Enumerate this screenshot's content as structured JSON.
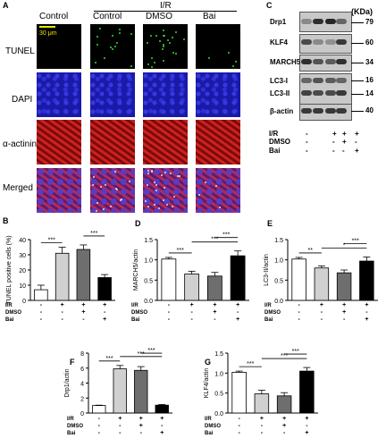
{
  "panel_a": {
    "label": "A",
    "group_header": "I/R",
    "columns": [
      "Control",
      "Control",
      "DMSO",
      "Bai"
    ],
    "rows": [
      "TUNEL",
      "DAPI",
      "α-actinin",
      "Merged"
    ],
    "scale_bar": "30 μm",
    "colors": {
      "tunel": "#000000",
      "dapi": "#1a1aa8",
      "actinin": "#b31515"
    }
  },
  "panel_c": {
    "label": "C",
    "unit": "(KDa)",
    "bands": [
      {
        "name": "Drp1",
        "kda": "79"
      },
      {
        "name": "KLF4",
        "kda": "60"
      },
      {
        "name": "MARCH5",
        "kda": "34"
      },
      {
        "name": "LC3-I",
        "kda": "16"
      },
      {
        "name": "LC3-II",
        "kda": "14"
      },
      {
        "name": "β-actin",
        "kda": "40"
      }
    ],
    "conditions": {
      "rows": [
        "I/R",
        "DMSO",
        "Bai"
      ],
      "values": [
        [
          "-",
          "+",
          "+",
          "+"
        ],
        [
          "-",
          "-",
          "+",
          "-"
        ],
        [
          "-",
          "-",
          "-",
          "+"
        ]
      ]
    }
  },
  "conditions": {
    "rows": [
      "I/R",
      "DMSO",
      "Bai"
    ],
    "values": [
      [
        "-",
        "+",
        "+",
        "+"
      ],
      [
        "-",
        "-",
        "+",
        "-"
      ],
      [
        "-",
        "-",
        "-",
        "+"
      ]
    ]
  },
  "bar_colors": [
    "#ffffff",
    "#d0d0d0",
    "#6e6e6e",
    "#000000"
  ],
  "chart_data": [
    {
      "label": "B",
      "type": "bar",
      "ylabel": "TUNEL positive cells (%)",
      "ylim": [
        0,
        40
      ],
      "ticks": [
        "0",
        "10",
        "20",
        "30",
        "40"
      ],
      "values": [
        7,
        31,
        33.5,
        15
      ],
      "errors": [
        3,
        4,
        3,
        2
      ],
      "sig": [
        {
          "text": "***",
          "from": 0,
          "to": 1
        },
        {
          "text": "***",
          "from": 2,
          "to": 3
        }
      ]
    },
    {
      "label": "D",
      "type": "bar",
      "ylabel": "MARCH5/actin",
      "ylim": [
        0,
        1.5
      ],
      "ticks": [
        "0.0",
        "0.5",
        "1.0",
        "1.5"
      ],
      "values": [
        1.02,
        0.65,
        0.6,
        1.1
      ],
      "errors": [
        0.04,
        0.07,
        0.09,
        0.12
      ],
      "sig": [
        {
          "text": "***",
          "from": 0,
          "to": 1
        },
        {
          "text": "***",
          "from": 1,
          "to": 3
        },
        {
          "text": "***",
          "from": 2,
          "to": 3
        }
      ]
    },
    {
      "label": "E",
      "type": "bar",
      "ylabel": "LC3-II/actin",
      "ylim": [
        0,
        1.5
      ],
      "ticks": [
        "0.0",
        "0.5",
        "1.0",
        "1.5"
      ],
      "values": [
        1.02,
        0.8,
        0.68,
        0.97
      ],
      "errors": [
        0.04,
        0.05,
        0.07,
        0.1
      ],
      "sig": [
        {
          "text": "**",
          "from": 0,
          "to": 1
        },
        {
          "text": "*",
          "from": 1,
          "to": 3
        },
        {
          "text": "***",
          "from": 2,
          "to": 3
        }
      ]
    },
    {
      "label": "F",
      "type": "bar",
      "ylabel": "Drp1/actin",
      "ylim": [
        0,
        8
      ],
      "ticks": [
        "0",
        "2",
        "4",
        "6",
        "8"
      ],
      "values": [
        1.0,
        5.9,
        5.7,
        1.05
      ],
      "errors": [
        0.05,
        0.45,
        0.5,
        0.1
      ],
      "sig": [
        {
          "text": "***",
          "from": 0,
          "to": 1
        },
        {
          "text": "***",
          "from": 1,
          "to": 3
        },
        {
          "text": "***",
          "from": 2,
          "to": 3
        }
      ]
    },
    {
      "label": "G",
      "type": "bar",
      "ylabel": "KLF4/actin",
      "ylim": [
        0,
        1.5
      ],
      "ticks": [
        "0.0",
        "0.5",
        "1.0",
        "1.5"
      ],
      "values": [
        1.02,
        0.48,
        0.43,
        1.05
      ],
      "errors": [
        0.03,
        0.09,
        0.08,
        0.09
      ],
      "sig": [
        {
          "text": "***",
          "from": 0,
          "to": 1
        },
        {
          "text": "***",
          "from": 1,
          "to": 3
        },
        {
          "text": "***",
          "from": 2,
          "to": 3
        }
      ]
    }
  ]
}
